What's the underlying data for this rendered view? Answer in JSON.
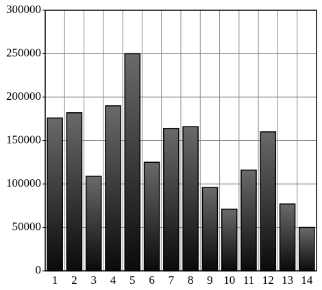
{
  "chart_data": {
    "type": "bar",
    "categories": [
      "1",
      "2",
      "3",
      "4",
      "5",
      "6",
      "7",
      "8",
      "9",
      "10",
      "11",
      "12",
      "13",
      "14"
    ],
    "values": [
      176000,
      182000,
      109000,
      190000,
      250000,
      125000,
      164000,
      166000,
      96000,
      71000,
      116000,
      160000,
      77000,
      50000
    ],
    "ylim": [
      0,
      300000
    ],
    "yticks": [
      0,
      50000,
      100000,
      150000,
      200000,
      250000,
      300000
    ],
    "grid": true
  }
}
